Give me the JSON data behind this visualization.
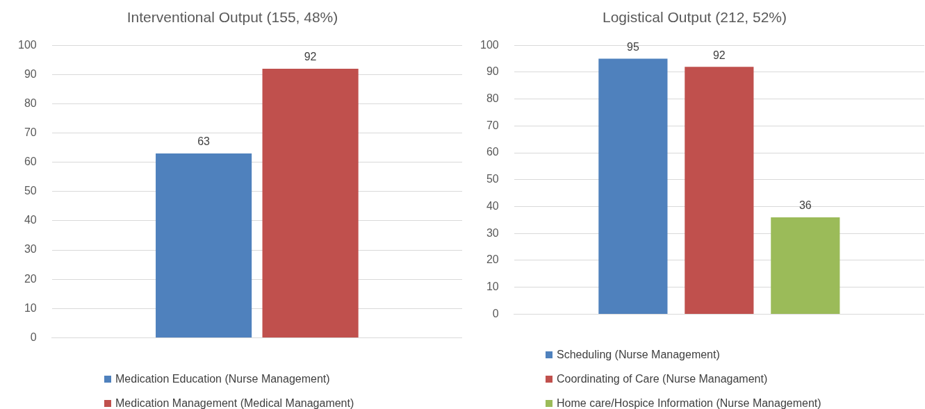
{
  "chart_data": [
    {
      "type": "bar",
      "title": "Interventional Output (155, 48%)",
      "categories": [
        null
      ],
      "series": [
        {
          "name": "Medication Education (Nurse Management)",
          "color": "#4f81bd",
          "values": [
            63
          ]
        },
        {
          "name": "Medication Management (Medical Managament)",
          "color": "#c0504d",
          "values": [
            92
          ]
        }
      ],
      "ylim": [
        0,
        100
      ],
      "yticks": [
        0,
        10,
        20,
        30,
        40,
        50,
        60,
        70,
        80,
        90,
        100
      ],
      "grid": "y",
      "legend": "bottom",
      "data_labels": true
    },
    {
      "type": "bar",
      "title": "Logistical Output (212, 52%)",
      "categories": [
        null
      ],
      "series": [
        {
          "name": "Scheduling (Nurse Management)",
          "color": "#4f81bd",
          "values": [
            95
          ]
        },
        {
          "name": "Coordinating of Care (Nurse Managament)",
          "color": "#c0504d",
          "values": [
            92
          ]
        },
        {
          "name": "Home care/Hospice Information (Nurse Management)",
          "color": "#9bbb59",
          "values": [
            36
          ]
        }
      ],
      "ylim": [
        0,
        100
      ],
      "yticks": [
        0,
        10,
        20,
        30,
        40,
        50,
        60,
        70,
        80,
        90,
        100
      ],
      "grid": "y",
      "legend": "bottom",
      "data_labels": true
    }
  ]
}
